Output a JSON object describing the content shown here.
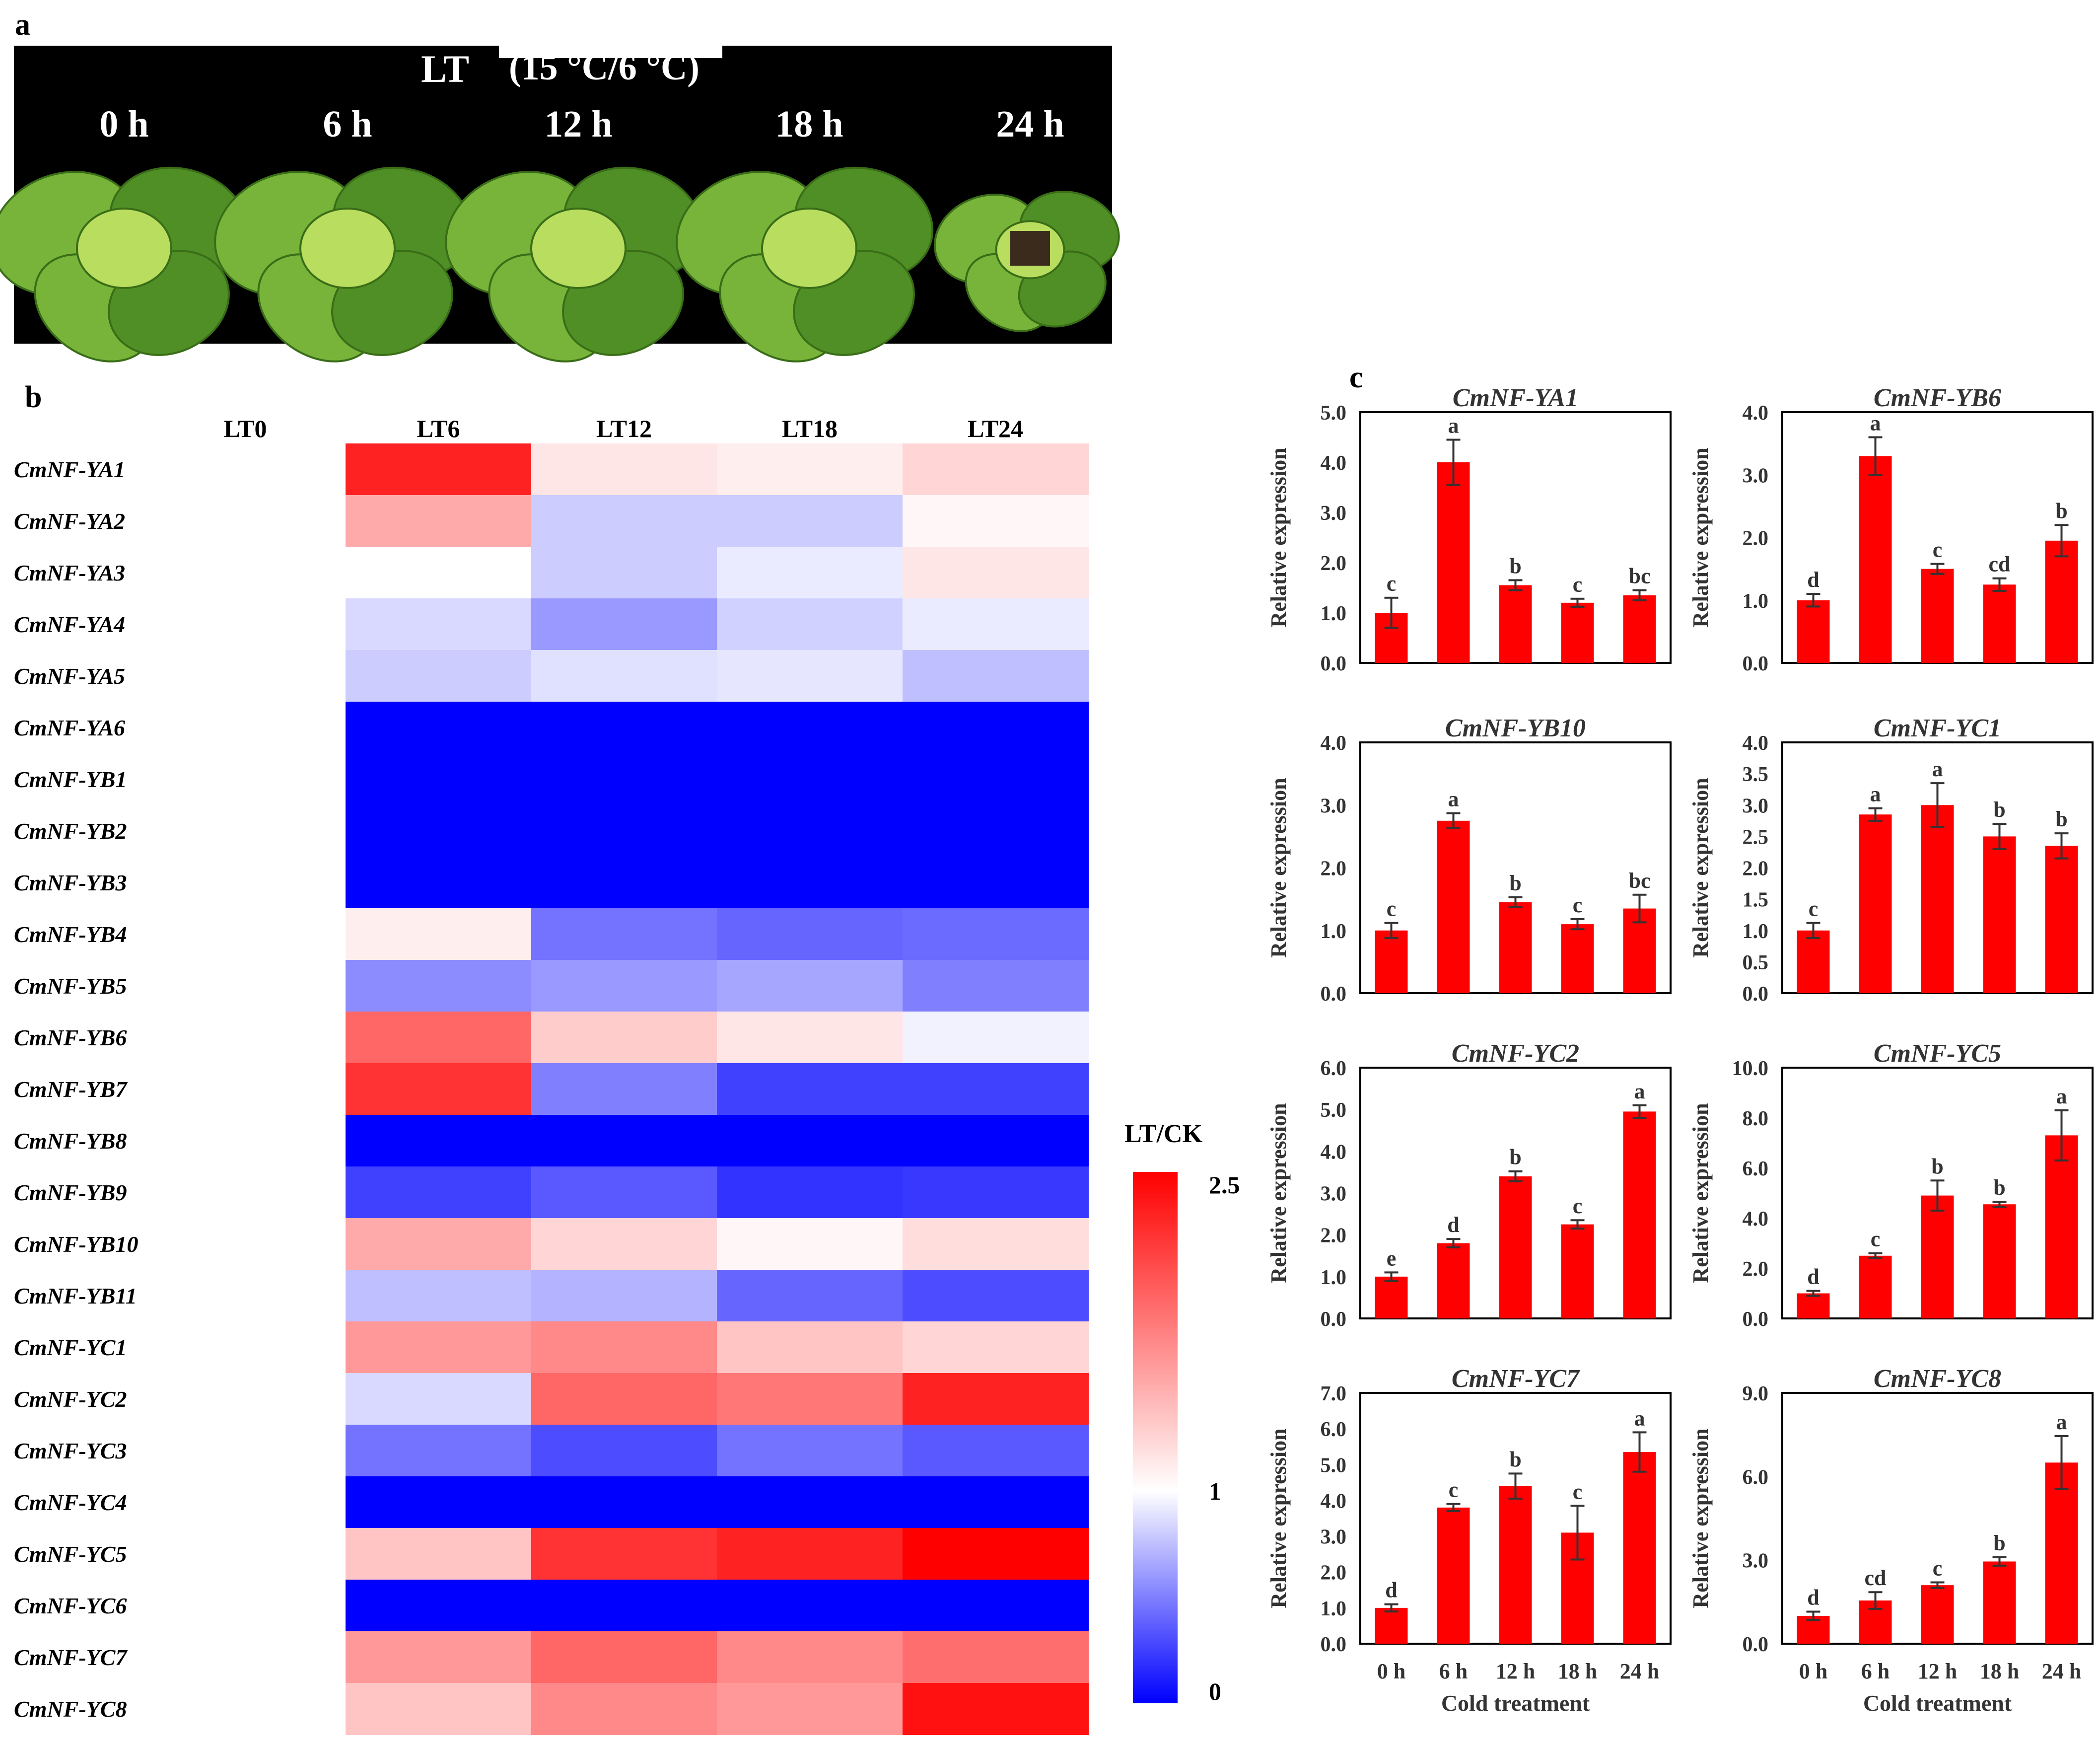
{
  "panel_a": {
    "label": "a",
    "title_lt": "LT",
    "title_temp": "(15 °C/6 °C)",
    "timepoints": [
      "0 h",
      "6 h",
      "12 h",
      "18 h",
      "24 h"
    ],
    "colors": {
      "background": "#000000",
      "leaf_dark": "#4f8f25",
      "leaf_mid": "#78b43a",
      "leaf_light": "#b9dd5e",
      "text": "#ffffff"
    }
  },
  "panel_b": {
    "label": "b"
  },
  "panel_c": {
    "label": "c"
  },
  "chart_data": [
    {
      "type": "heatmap",
      "columns": [
        "LT0",
        "LT6",
        "LT12",
        "LT18",
        "LT24"
      ],
      "rows": [
        "CmNF-YA1",
        "CmNF-YA2",
        "CmNF-YA3",
        "CmNF-YA4",
        "CmNF-YA5",
        "CmNF-YA6",
        "CmNF-YB1",
        "CmNF-YB2",
        "CmNF-YB3",
        "CmNF-YB4",
        "CmNF-YB5",
        "CmNF-YB6",
        "CmNF-YB7",
        "CmNF-YB8",
        "CmNF-YB9",
        "CmNF-YB10",
        "CmNF-YB11",
        "CmNF-YC1",
        "CmNF-YC2",
        "CmNF-YC3",
        "CmNF-YC4",
        "CmNF-YC5",
        "CmNF-YC6",
        "CmNF-YC7",
        "CmNF-YC8"
      ],
      "values": [
        [
          null,
          2.3,
          1.15,
          1.1,
          1.25
        ],
        [
          null,
          1.5,
          0.8,
          0.8,
          1.05
        ],
        [
          null,
          1.0,
          0.8,
          0.92,
          1.15
        ],
        [
          null,
          0.85,
          0.6,
          0.82,
          0.92
        ],
        [
          null,
          0.8,
          0.88,
          0.9,
          0.75
        ],
        [
          null,
          0,
          0,
          0,
          0
        ],
        [
          null,
          0,
          0,
          0,
          0
        ],
        [
          null,
          0,
          0,
          0,
          0
        ],
        [
          null,
          0,
          0,
          0,
          0
        ],
        [
          null,
          1.1,
          0.45,
          0.4,
          0.42
        ],
        [
          null,
          0.55,
          0.6,
          0.65,
          0.5
        ],
        [
          null,
          1.9,
          1.3,
          1.15,
          0.95
        ],
        [
          null,
          2.2,
          0.5,
          0.25,
          0.25
        ],
        [
          null,
          0,
          0,
          0,
          0
        ],
        [
          null,
          0.25,
          0.35,
          0.2,
          0.22
        ],
        [
          null,
          1.5,
          1.25,
          1.05,
          1.2
        ],
        [
          null,
          0.75,
          0.7,
          0.4,
          0.3
        ],
        [
          null,
          1.6,
          1.7,
          1.35,
          1.25
        ],
        [
          null,
          0.85,
          1.9,
          1.8,
          2.3
        ],
        [
          null,
          0.45,
          0.3,
          0.45,
          0.35
        ],
        [
          null,
          0,
          0,
          0,
          0
        ],
        [
          null,
          1.35,
          2.2,
          2.3,
          2.5
        ],
        [
          null,
          0,
          0,
          0,
          0
        ],
        [
          null,
          1.6,
          1.9,
          1.7,
          1.85
        ],
        [
          null,
          1.35,
          1.7,
          1.6,
          2.4
        ]
      ],
      "legend_title": "LT/CK",
      "scale": {
        "min": 0,
        "mid": 1,
        "max": 2.5,
        "low_color": "#0000ff",
        "mid_color": "#ffffff",
        "high_color": "#ff0000"
      },
      "scale_ticks": [
        {
          "value": 0,
          "label": "0"
        },
        {
          "value": 1,
          "label": "1"
        },
        {
          "value": 2.5,
          "label": "2.5"
        }
      ]
    },
    {
      "type": "bar",
      "title": "CmNF-YA1",
      "ylabel": "Relative expression",
      "xlabel": "",
      "categories": [
        "0 h",
        "6 h",
        "12 h",
        "18 h",
        "24 h"
      ],
      "ylim": [
        0,
        5
      ],
      "ticks": [
        "0.0",
        "1.0",
        "2.0",
        "3.0",
        "4.0",
        "5.0"
      ],
      "values": [
        1.0,
        4.0,
        1.55,
        1.2,
        1.35
      ],
      "errors": [
        0.3,
        0.45,
        0.1,
        0.08,
        0.1
      ],
      "letters": [
        "c",
        "a",
        "b",
        "c",
        "bc"
      ],
      "color": "#ff0000"
    },
    {
      "type": "bar",
      "title": "CmNF-YB6",
      "ylabel": "Relative expression",
      "xlabel": "",
      "categories": [
        "0 h",
        "6 h",
        "12 h",
        "18 h",
        "24 h"
      ],
      "ylim": [
        0,
        4
      ],
      "ticks": [
        "0.0",
        "1.0",
        "2.0",
        "3.0",
        "4.0"
      ],
      "values": [
        1.0,
        3.3,
        1.5,
        1.25,
        1.95
      ],
      "errors": [
        0.1,
        0.3,
        0.08,
        0.1,
        0.25
      ],
      "letters": [
        "d",
        "a",
        "c",
        "cd",
        "b"
      ],
      "color": "#ff0000"
    },
    {
      "type": "bar",
      "title": "CmNF-YB10",
      "ylabel": "Relative expression",
      "xlabel": "",
      "categories": [
        "0 h",
        "6 h",
        "12 h",
        "18 h",
        "24 h"
      ],
      "ylim": [
        0,
        4
      ],
      "ticks": [
        "0.0",
        "1.0",
        "2.0",
        "3.0",
        "4.0"
      ],
      "values": [
        1.0,
        2.75,
        1.45,
        1.1,
        1.35
      ],
      "errors": [
        0.12,
        0.12,
        0.08,
        0.08,
        0.22
      ],
      "letters": [
        "c",
        "a",
        "b",
        "c",
        "bc"
      ],
      "color": "#ff0000"
    },
    {
      "type": "bar",
      "title": "CmNF-YC1",
      "ylabel": "Relative expression",
      "xlabel": "",
      "categories": [
        "0 h",
        "6 h",
        "12 h",
        "18 h",
        "24 h"
      ],
      "ylim": [
        0,
        4
      ],
      "ticks": [
        "0.0",
        "0.5",
        "1.0",
        "1.5",
        "2.0",
        "2.5",
        "3.0",
        "3.5",
        "4.0"
      ],
      "values": [
        1.0,
        2.85,
        3.0,
        2.5,
        2.35
      ],
      "errors": [
        0.12,
        0.1,
        0.35,
        0.2,
        0.2
      ],
      "letters": [
        "c",
        "a",
        "a",
        "b",
        "b"
      ],
      "color": "#ff0000"
    },
    {
      "type": "bar",
      "title": "CmNF-YC2",
      "ylabel": "Relative expression",
      "xlabel": "",
      "categories": [
        "0 h",
        "6 h",
        "12 h",
        "18 h",
        "24 h"
      ],
      "ylim": [
        0,
        6
      ],
      "ticks": [
        "0.0",
        "1.0",
        "2.0",
        "3.0",
        "4.0",
        "5.0",
        "6.0"
      ],
      "values": [
        1.0,
        1.8,
        3.4,
        2.25,
        4.95
      ],
      "errors": [
        0.1,
        0.1,
        0.12,
        0.1,
        0.15
      ],
      "letters": [
        "e",
        "d",
        "b",
        "c",
        "a"
      ],
      "color": "#ff0000"
    },
    {
      "type": "bar",
      "title": "CmNF-YC5",
      "ylabel": "Relative expression",
      "xlabel": "",
      "categories": [
        "0 h",
        "6 h",
        "12 h",
        "18 h",
        "24 h"
      ],
      "ylim": [
        0,
        10
      ],
      "ticks": [
        "0.0",
        "2.0",
        "4.0",
        "6.0",
        "8.0",
        "10.0"
      ],
      "values": [
        1.0,
        2.5,
        4.9,
        4.55,
        7.3
      ],
      "errors": [
        0.1,
        0.1,
        0.6,
        0.1,
        1.0
      ],
      "letters": [
        "d",
        "c",
        "b",
        "b",
        "a"
      ],
      "color": "#ff0000"
    },
    {
      "type": "bar",
      "title": "CmNF-YC7",
      "ylabel": "Relative expression",
      "xlabel": "Cold treatment",
      "categories": [
        "0 h",
        "6 h",
        "12 h",
        "18 h",
        "24 h"
      ],
      "ylim": [
        0,
        7
      ],
      "ticks": [
        "0.0",
        "1.0",
        "2.0",
        "3.0",
        "4.0",
        "5.0",
        "6.0",
        "7.0"
      ],
      "values": [
        1.0,
        3.8,
        4.4,
        3.1,
        5.35
      ],
      "errors": [
        0.1,
        0.1,
        0.35,
        0.75,
        0.55
      ],
      "letters": [
        "d",
        "c",
        "b",
        "c",
        "a"
      ],
      "color": "#ff0000"
    },
    {
      "type": "bar",
      "title": "CmNF-YC8",
      "ylabel": "Relative expression",
      "xlabel": "Cold treatment",
      "categories": [
        "0 h",
        "6 h",
        "12 h",
        "18 h",
        "24 h"
      ],
      "ylim": [
        0,
        9
      ],
      "ticks": [
        "0.0",
        "3.0",
        "6.0",
        "9.0"
      ],
      "values": [
        1.0,
        1.55,
        2.1,
        2.95,
        6.5
      ],
      "errors": [
        0.15,
        0.3,
        0.1,
        0.15,
        0.95
      ],
      "letters": [
        "d",
        "cd",
        "c",
        "b",
        "a"
      ],
      "color": "#ff0000"
    }
  ]
}
